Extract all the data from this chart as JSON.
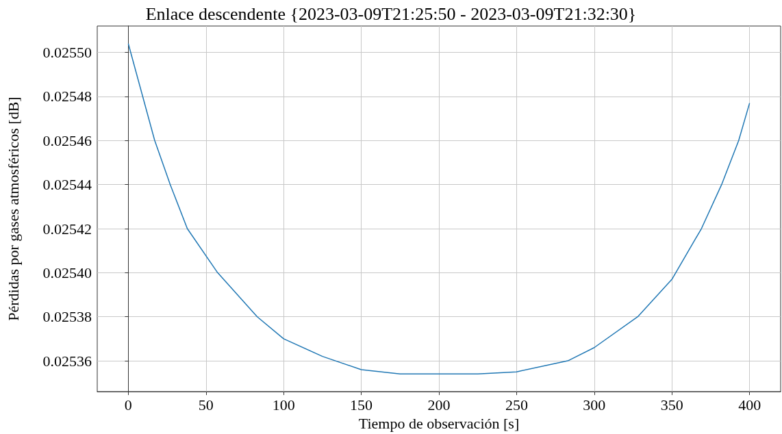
{
  "chart_data": {
    "type": "line",
    "title": "Enlace descendente {2023-03-09T21:25:50 - 2023-03-09T21:32:30}",
    "xlabel": "Tiempo de observación [s]",
    "ylabel": "Pérdidas por gases atmosféricos [dB]",
    "x": [
      0,
      17,
      27,
      38,
      57.5,
      83,
      100,
      125,
      150,
      175,
      200,
      225,
      250,
      283,
      300,
      328,
      350,
      369,
      382,
      393,
      400
    ],
    "series": [
      {
        "color": "#1f77b4",
        "values": [
          0.025504,
          0.02546,
          0.02544,
          0.02542,
          0.0254,
          0.02538,
          0.02537,
          0.025362,
          0.025356,
          0.025354,
          0.025354,
          0.025354,
          0.025355,
          0.02536,
          0.025366,
          0.02538,
          0.025397,
          0.02542,
          0.02544,
          0.02546,
          0.025477
        ]
      }
    ],
    "xlim": [
      -20,
      420
    ],
    "xticks": [
      0,
      50,
      100,
      150,
      200,
      250,
      300,
      350,
      400
    ],
    "ylim": [
      0.025346,
      0.025512
    ],
    "yticks": [
      0.02536,
      0.02538,
      {
        "value": 0.0254,
        "label": "0.02540"
      },
      0.02542,
      0.02544,
      0.02546,
      0.02548,
      {
        "value": 0.0255,
        "label": "0.02550"
      }
    ],
    "grid": true,
    "marker": "none",
    "line_style": "solid"
  }
}
